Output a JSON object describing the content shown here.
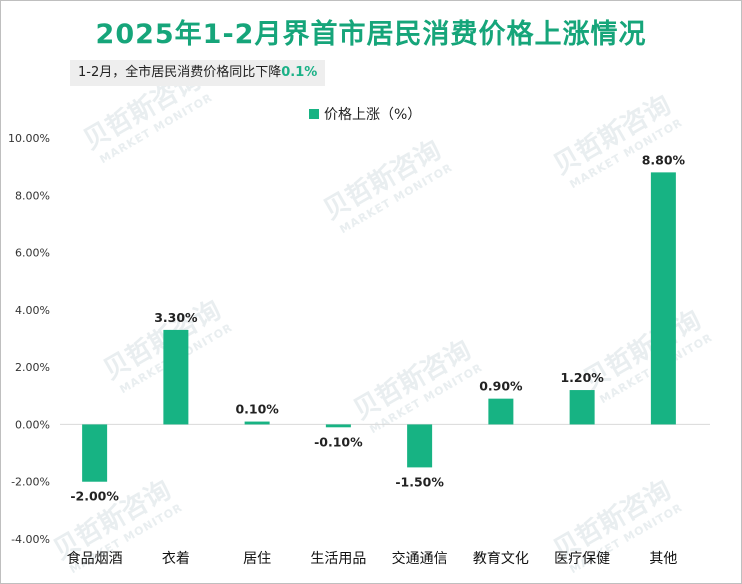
{
  "header": {
    "title": "2025年1-2月界首市居民消费价格上涨情况",
    "note_prefix": "1-2月，全市居民消费价格同比下降",
    "note_value": "0.1%"
  },
  "watermark": {
    "brand": "贝哲斯咨询",
    "sub": "MARKET MONITOR"
  },
  "colors": {
    "accent": "#16a57a",
    "bar": "#17b383",
    "note_bg": "#eeeeee"
  },
  "chart_data": {
    "type": "bar",
    "categories": [
      "食品烟酒",
      "衣着",
      "居住",
      "生活用品",
      "交通通信",
      "教育文化",
      "医疗保健",
      "其他"
    ],
    "series": [
      {
        "name": "价格上涨（%）",
        "values": [
          -2.0,
          3.3,
          0.1,
          -0.1,
          -1.5,
          0.9,
          1.2,
          8.8
        ]
      }
    ],
    "data_labels": [
      "-2.00%",
      "3.30%",
      "0.10%",
      "-0.10%",
      "-1.50%",
      "0.90%",
      "1.20%",
      "8.80%"
    ],
    "yticks": [
      -4,
      -2,
      0,
      2,
      4,
      6,
      8,
      10
    ],
    "ytick_labels": [
      "-4.00%",
      "-2.00%",
      "0.00%",
      "2.00%",
      "4.00%",
      "6.00%",
      "8.00%",
      "10.00%"
    ],
    "ylim": [
      -4,
      10
    ],
    "legend": "top-center",
    "grid": false
  }
}
